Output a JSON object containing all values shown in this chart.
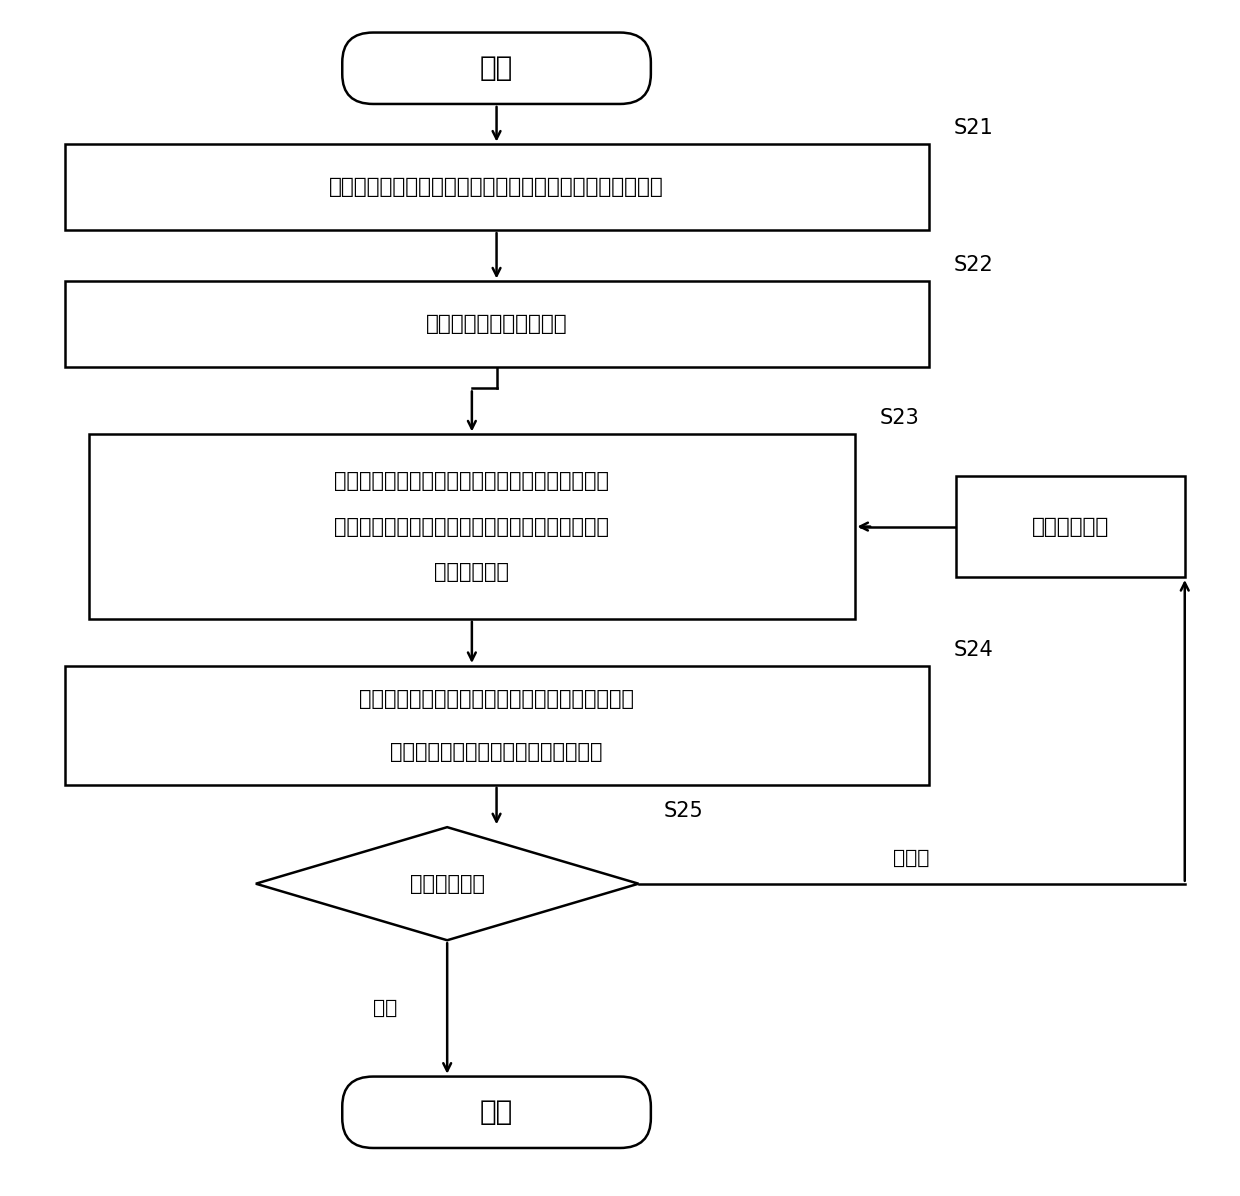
{
  "bg_color": "#ffffff",
  "fig_width": 12.4,
  "fig_height": 11.96,
  "start_text": "开始",
  "end_text": "结束",
  "s21_text": "获取电力现货市场交易和备用辅助服务安排需要的边界数据",
  "s22_text": "获取市场成员的申报数据",
  "s23_line1": "根据边界数据和申报数据，基于备用容量约束的电",
  "s23_line2": "能与调频辅助服务联合出清模型对电能与调频辅助",
  "s23_line3": "服务联合出清",
  "s24_line1": "根据电能与调频辅助服务联合出清的结果，基于优",
  "s24_line2": "化备用辅助服务模型优化备用辅助服务",
  "s25_text": "可行性判定？",
  "add_text": "增加运行约束",
  "label_s21": "S21",
  "label_s22": "S22",
  "label_s23": "S23",
  "label_s24": "S24",
  "label_s25": "S25",
  "pass_text": "通过",
  "fail_text": "不通过"
}
